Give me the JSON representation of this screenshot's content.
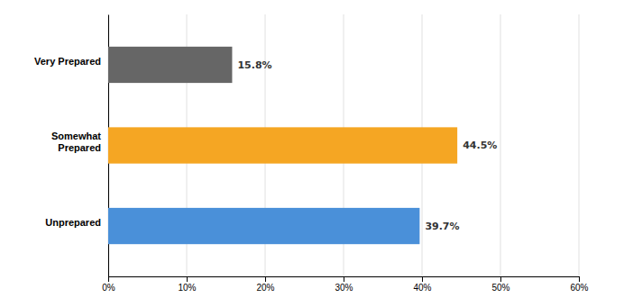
{
  "chart_data": {
    "type": "bar",
    "orientation": "horizontal",
    "categories": [
      "Very Prepared",
      "Somewhat\nPrepared",
      "Unprepared"
    ],
    "values": [
      15.8,
      44.5,
      39.7
    ],
    "value_labels": [
      "15.8%",
      "44.5%",
      "39.7%"
    ],
    "colors": [
      "#666666",
      "#F5A623",
      "#4A90D9"
    ],
    "xlim": [
      0,
      60
    ],
    "xticks": [
      {
        "value": 0,
        "label": "0%"
      },
      {
        "value": 10,
        "label": "10%"
      },
      {
        "value": 20,
        "label": "20%"
      },
      {
        "value": 30,
        "label": "30%"
      },
      {
        "value": 40,
        "label": "40%"
      },
      {
        "value": 50,
        "label": "50%"
      },
      {
        "value": 60,
        "label": "60%"
      }
    ],
    "grid": true,
    "data_labels": true
  }
}
